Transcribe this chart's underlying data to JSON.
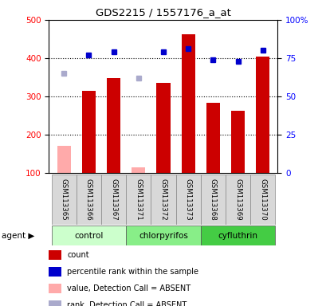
{
  "title": "GDS2215 / 1557176_a_at",
  "samples": [
    "GSM113365",
    "GSM113366",
    "GSM113367",
    "GSM113371",
    "GSM113372",
    "GSM113373",
    "GSM113368",
    "GSM113369",
    "GSM113370"
  ],
  "bar_values": [
    170,
    315,
    348,
    115,
    335,
    462,
    283,
    263,
    405
  ],
  "bar_absent": [
    true,
    false,
    false,
    true,
    false,
    false,
    false,
    false,
    false
  ],
  "rank_values": [
    65,
    77,
    79,
    62,
    79,
    81,
    74,
    73,
    80
  ],
  "rank_absent": [
    true,
    false,
    false,
    true,
    false,
    false,
    false,
    false,
    false
  ],
  "ylim_left": [
    100,
    500
  ],
  "ylim_right": [
    0,
    100
  ],
  "yticks_left": [
    100,
    200,
    300,
    400,
    500
  ],
  "yticks_right": [
    0,
    25,
    50,
    75,
    100
  ],
  "yticklabels_right": [
    "0",
    "25",
    "50",
    "75",
    "100%"
  ],
  "bar_color_present": "#cc0000",
  "bar_color_absent": "#ffaaaa",
  "rank_color_present": "#0000cc",
  "rank_color_absent": "#aaaacc",
  "group_positions": [
    {
      "start": 0,
      "end": 2,
      "name": "control",
      "color": "#ccffcc"
    },
    {
      "start": 3,
      "end": 5,
      "name": "chlorpyrifos",
      "color": "#88ee88"
    },
    {
      "start": 6,
      "end": 8,
      "name": "cyfluthrin",
      "color": "#44cc44"
    }
  ],
  "legend_items": [
    {
      "color": "#cc0000",
      "label": "count"
    },
    {
      "color": "#0000cc",
      "label": "percentile rank within the sample"
    },
    {
      "color": "#ffaaaa",
      "label": "value, Detection Call = ABSENT"
    },
    {
      "color": "#aaaacc",
      "label": "rank, Detection Call = ABSENT"
    }
  ]
}
